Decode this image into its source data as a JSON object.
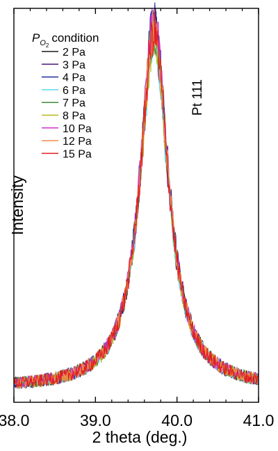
{
  "chart_data": {
    "type": "line",
    "title": "",
    "xlabel": "2 theta (deg.)",
    "ylabel": "Intensity",
    "xlim": [
      38.0,
      41.0
    ],
    "ylim": [
      0,
      1
    ],
    "xticks": [
      "38.0",
      "39.0",
      "40.0",
      "41.0"
    ],
    "yticks_shown": false,
    "grid": false,
    "legend": {
      "placement": "top-left",
      "title_symbol": "P",
      "title_subscript": "O",
      "title_subsubscript": "2",
      "title_text": "condition"
    },
    "annotation": "Pt 111",
    "peak": {
      "center": 39.72,
      "fwhm": 0.42,
      "baseline": 0.035
    },
    "series": [
      {
        "name": "2 Pa",
        "color": "#1a1a1a",
        "peak_height": 0.95
      },
      {
        "name": "3 Pa",
        "color": "#4b1a7a",
        "peak_height": 0.93
      },
      {
        "name": "4 Pa",
        "color": "#1f2a9e",
        "peak_height": 0.97
      },
      {
        "name": "6 Pa",
        "color": "#5fd7f0",
        "peak_height": 0.92
      },
      {
        "name": "7 Pa",
        "color": "#3d8a3d",
        "peak_height": 0.94
      },
      {
        "name": "8 Pa",
        "color": "#b8b81e",
        "peak_height": 0.93
      },
      {
        "name": "10 Pa",
        "color": "#d12fd1",
        "peak_height": 0.96
      },
      {
        "name": "12 Pa",
        "color": "#f08a4b",
        "peak_height": 0.95
      },
      {
        "name": "15 Pa",
        "color": "#e01e1e",
        "peak_height": 0.94
      }
    ]
  }
}
